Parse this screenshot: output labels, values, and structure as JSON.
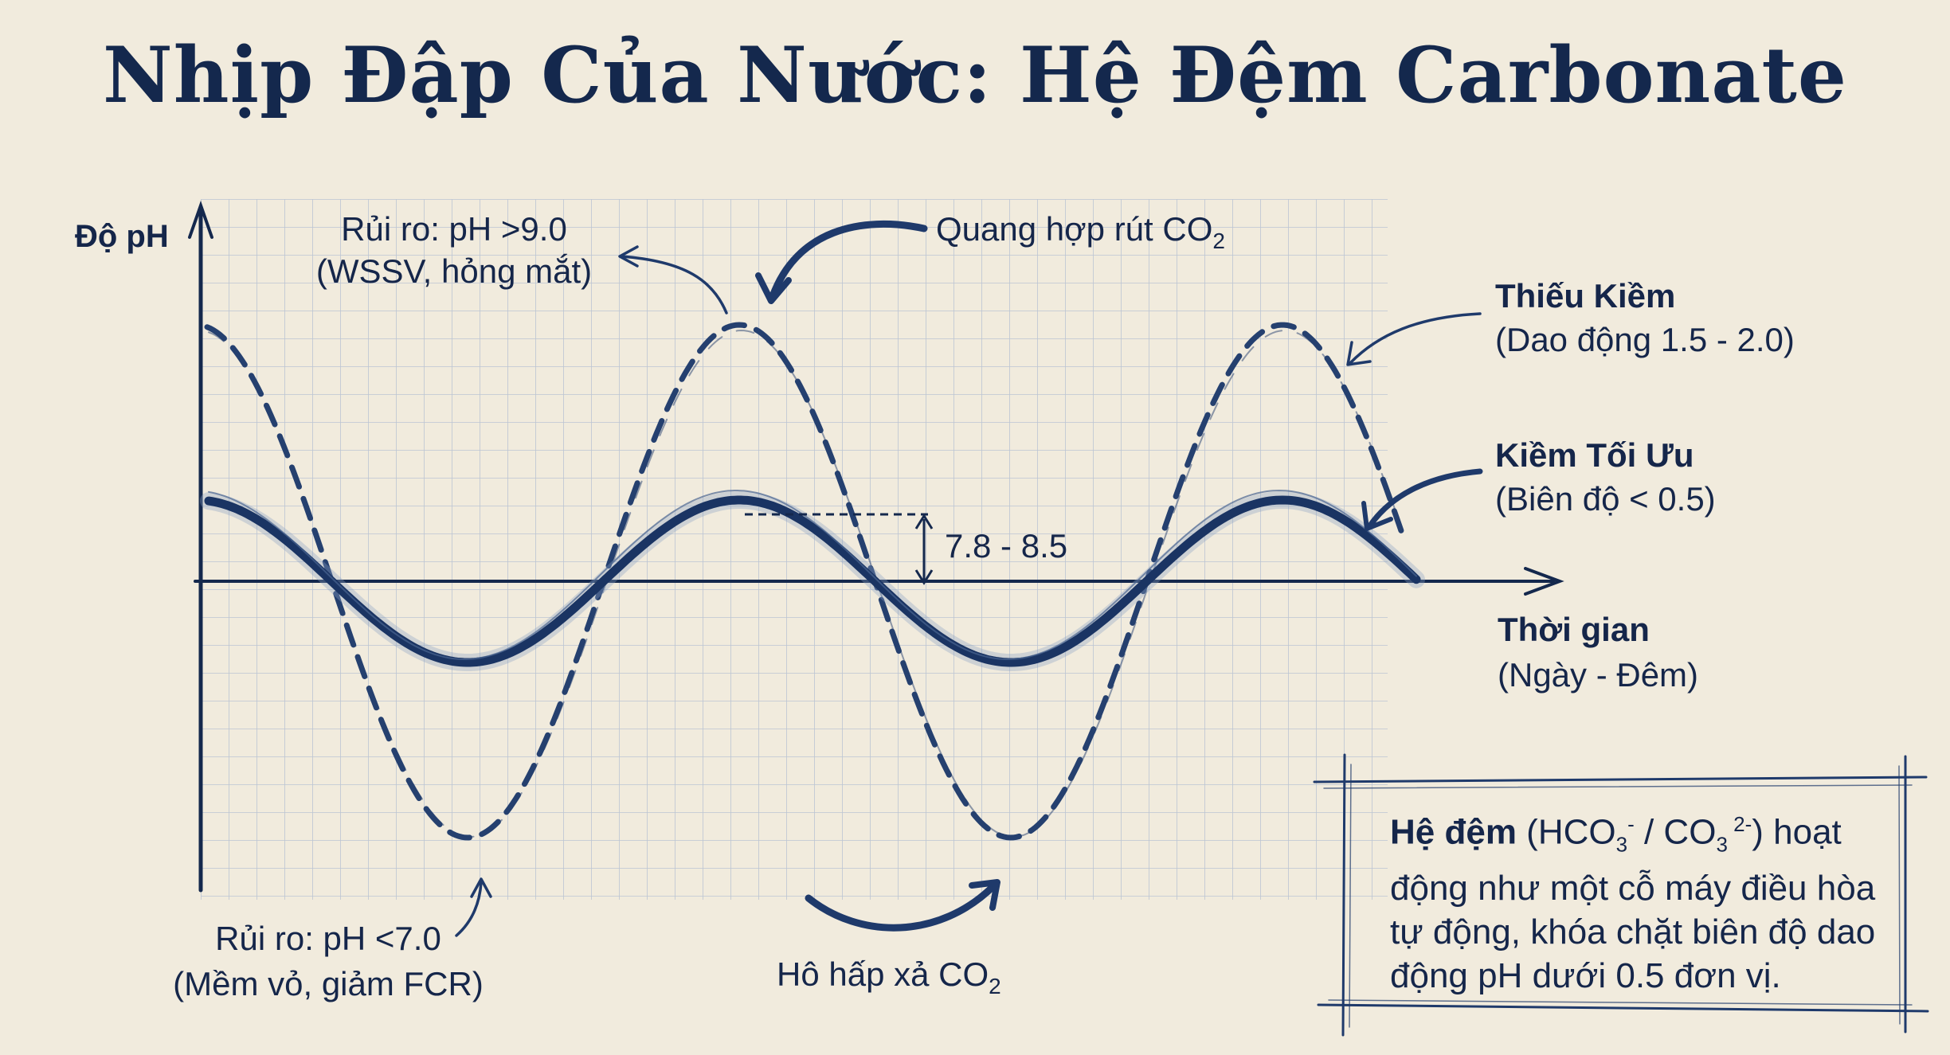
{
  "title": "Nhịp Đập Của Nước: Hệ Đệm Carbonate",
  "axes": {
    "y_label": "Độ pH",
    "x_label": "Thời gian",
    "x_sublabel": "(Ngày - Đêm)"
  },
  "annotations": {
    "risk_high_line1": "Rủi ro: pH >9.0",
    "risk_high_line2": "(WSSV, hỏng mắt)",
    "photosynthesis_text": "Quang hợp rút CO",
    "photosynthesis_sub": "2",
    "low_alk_title": "Thiếu Kiềm",
    "low_alk_detail": "(Dao động 1.5 - 2.0)",
    "opt_alk_title": "Kiềm Tối Ưu",
    "opt_alk_detail": "(Biên độ < 0.5)",
    "range_label": "7.8 - 8.5",
    "risk_low_line1": "Rủi ro: pH <7.0",
    "risk_low_line2": "(Mềm vỏ, giảm FCR)",
    "respiration_text": "Hô hấp xả CO",
    "respiration_sub": "2"
  },
  "note": {
    "bold": "Hệ đệm",
    "formula_open": " (HCO",
    "hco3_sub": "3",
    "hco3_sup": "-",
    "formula_mid": " / CO",
    "co3_sub": "3",
    "co3_sup": " 2-",
    "formula_close": ") hoạt",
    "body": "động như một cỗ máy điều hòa tự động, khóa chặt biên độ dao động pH dưới 0.5 đơn vị."
  },
  "colors": {
    "ink": "#14284d",
    "curve": "#1f3a6b",
    "grid": "#a9b8cf",
    "paper": "#f1ebdd"
  }
}
